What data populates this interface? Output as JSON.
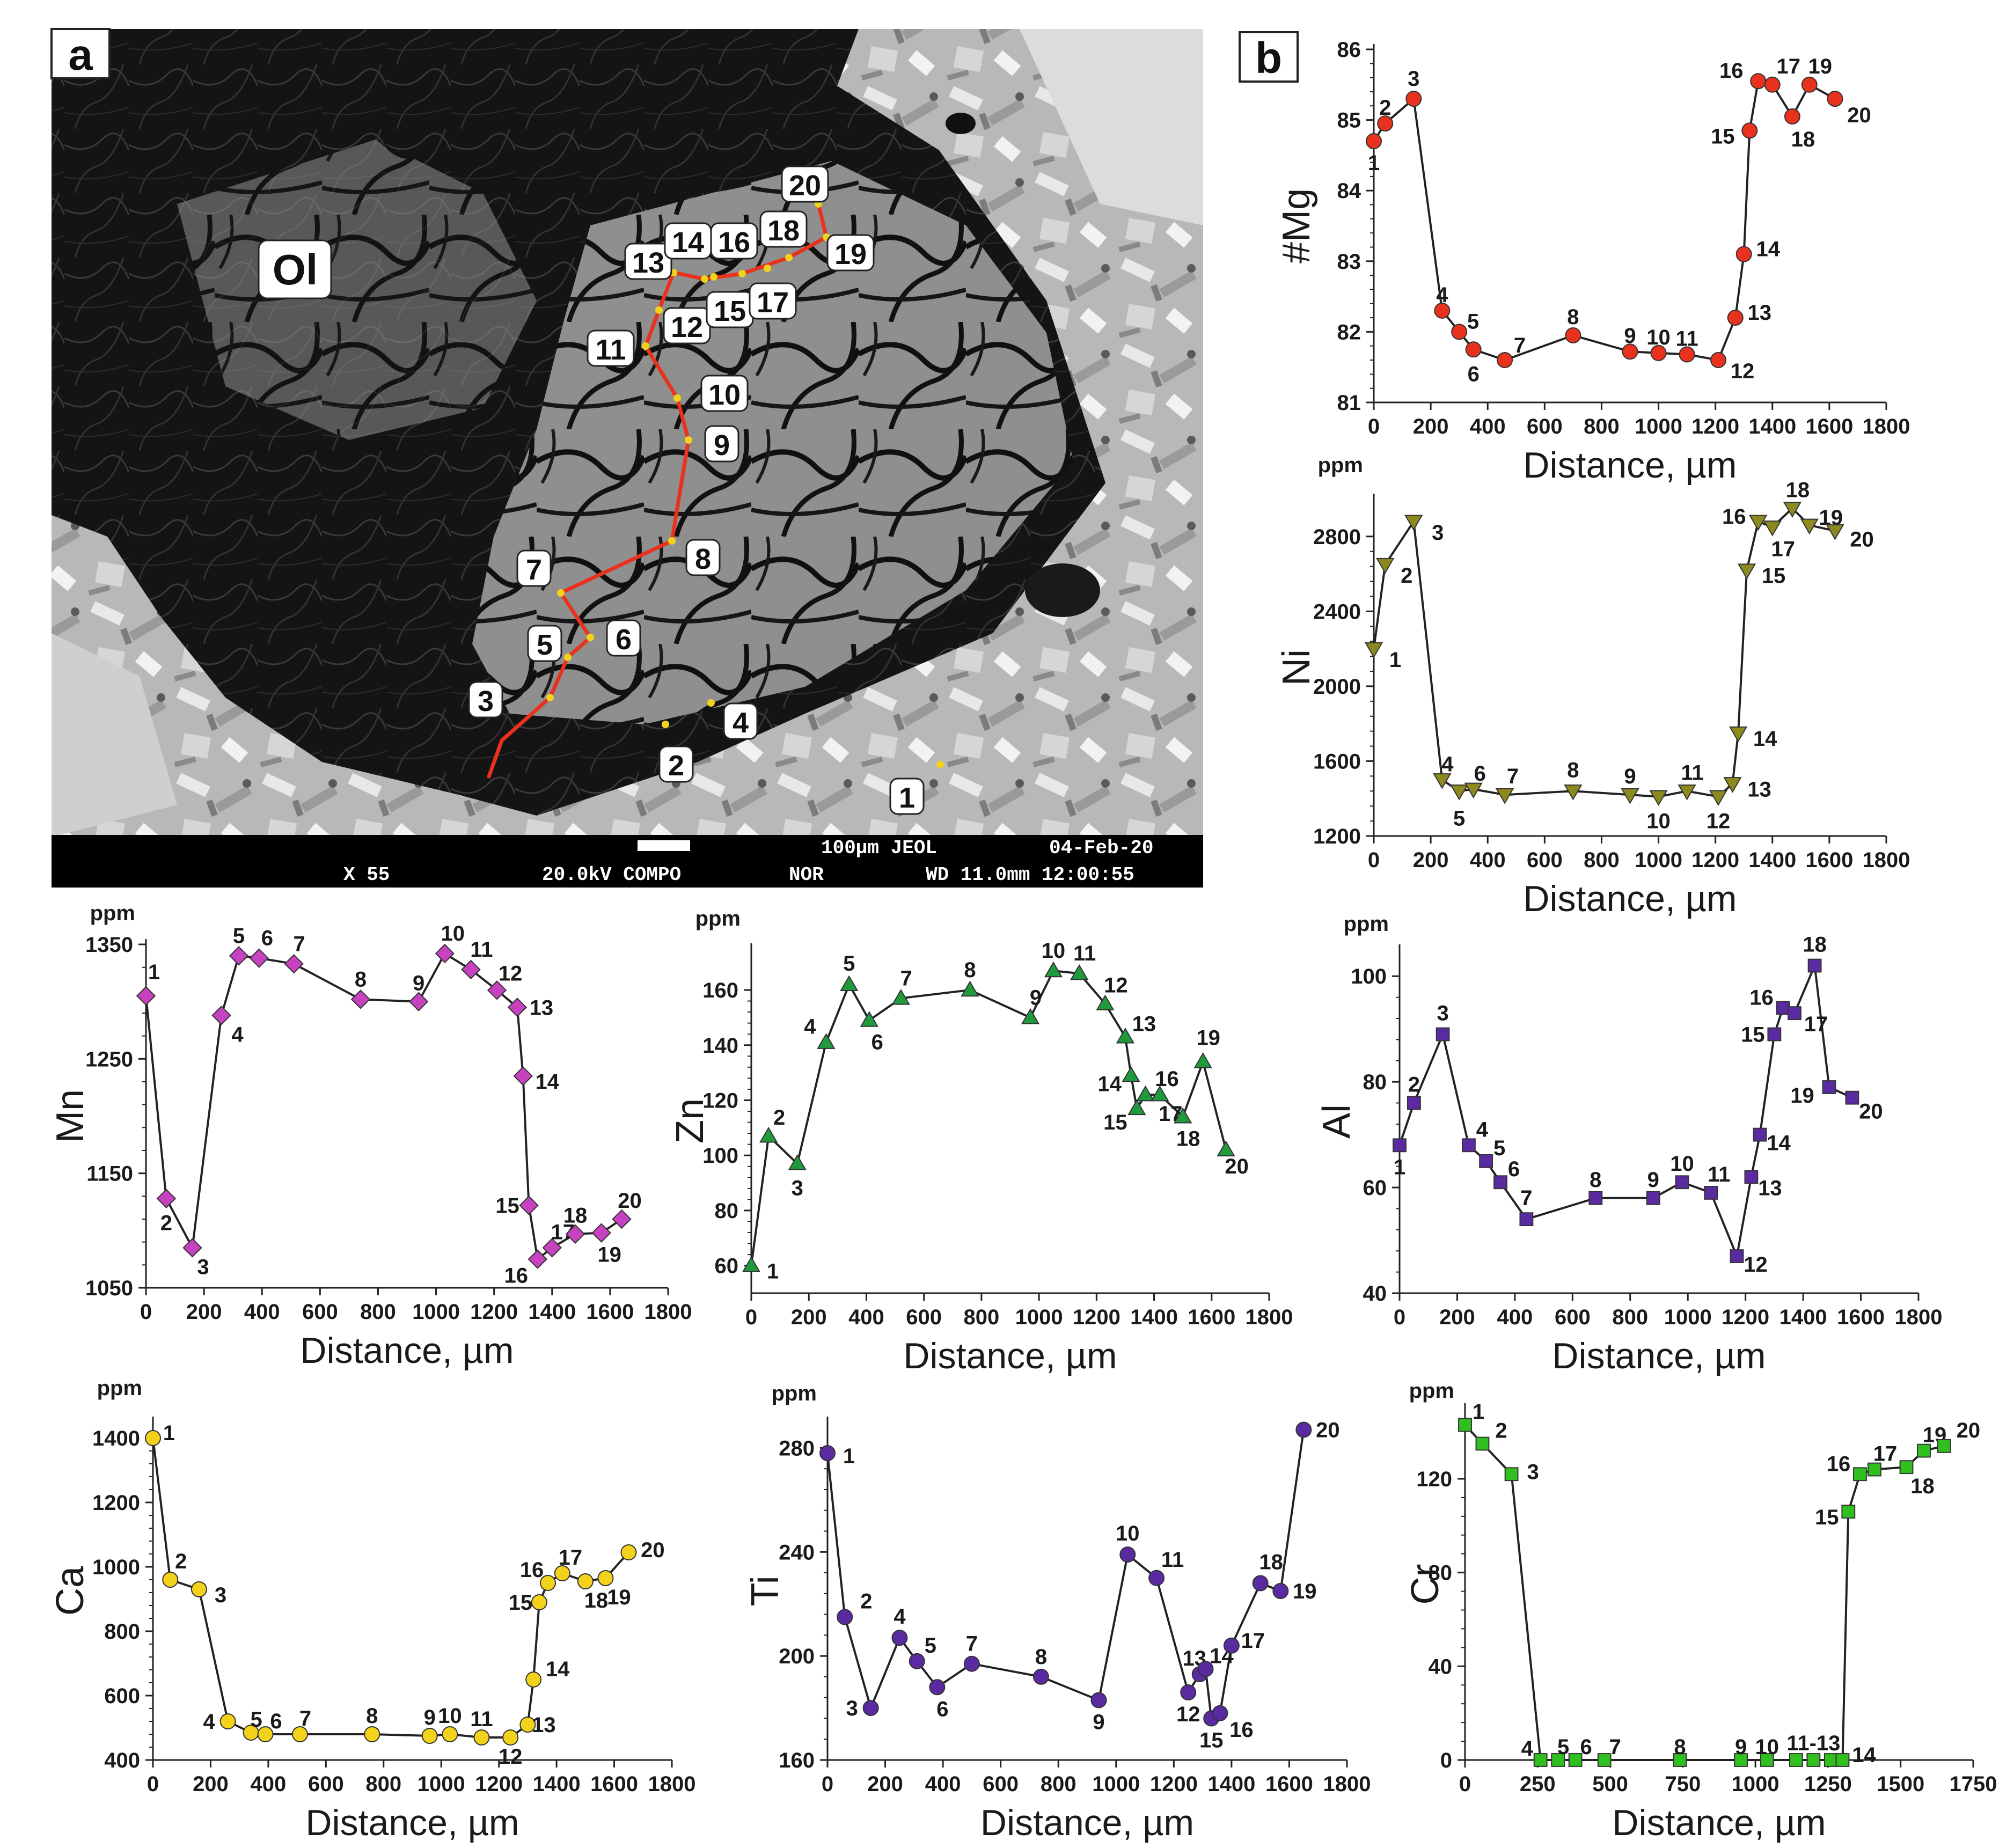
{
  "panel_a": {
    "label": "a",
    "mineral_label": "Ol",
    "scale_bar_text": "100µm JEOL",
    "date_text": "04-Feb-20",
    "magnification": "X 55",
    "voltage_mode": "20.0kV COMPO",
    "nor": "NOR",
    "wd_time": "WD 11.0mm 12:00:55",
    "traverse_points": [
      "1",
      "2",
      "3",
      "4",
      "5",
      "6",
      "7",
      "8",
      "9",
      "10",
      "11",
      "12",
      "13",
      "14",
      "15",
      "16",
      "17",
      "18",
      "19",
      "20"
    ],
    "colors": {
      "traverse": "#e8321e",
      "point": "#f2d21b"
    }
  },
  "panel_b": {
    "label": "b"
  },
  "chart_data": [
    {
      "type": "line",
      "id": "mg",
      "ylabel": "#Mg",
      "unit": "",
      "xlabel": "Distance, µm",
      "xlim": [
        0,
        1800
      ],
      "ylim": [
        81,
        86
      ],
      "xticks": [
        0,
        200,
        400,
        600,
        800,
        1000,
        1200,
        1400,
        1600,
        1800
      ],
      "yticks": [
        81,
        82,
        83,
        84,
        85,
        86
      ],
      "marker": "circle",
      "color": "#e8321e",
      "x": [
        0,
        40,
        140,
        240,
        300,
        350,
        460,
        700,
        900,
        1000,
        1100,
        1210,
        1270,
        1300,
        1320,
        1350,
        1400,
        1470,
        1530,
        1620
      ],
      "y": [
        84.7,
        84.95,
        85.3,
        82.3,
        82.0,
        81.75,
        81.6,
        81.95,
        81.72,
        81.7,
        81.68,
        81.6,
        82.2,
        83.1,
        84.85,
        85.55,
        85.5,
        85.05,
        85.5,
        85.3
      ],
      "labels": [
        "1",
        "2",
        "3",
        "4",
        "5",
        "6",
        "7",
        "8",
        "9",
        "10",
        "11",
        "12",
        "13",
        "14",
        "15",
        "16",
        "17",
        "18",
        "19",
        "20"
      ]
    },
    {
      "type": "line",
      "id": "ni",
      "ylabel": "Ni",
      "unit": "ppm",
      "xlabel": "Distance, µm",
      "xlim": [
        0,
        1800
      ],
      "ylim": [
        1200,
        3000
      ],
      "xticks": [
        0,
        200,
        400,
        600,
        800,
        1000,
        1200,
        1400,
        1600,
        1800
      ],
      "yticks": [
        1200,
        1600,
        2000,
        2400,
        2800
      ],
      "marker": "triangle-down",
      "color": "#8c8a1e",
      "x": [
        0,
        40,
        140,
        240,
        300,
        350,
        460,
        700,
        900,
        1000,
        1100,
        1210,
        1260,
        1280,
        1310,
        1350,
        1400,
        1470,
        1530,
        1620
      ],
      "y": [
        2200,
        2650,
        2880,
        1500,
        1440,
        1450,
        1420,
        1440,
        1420,
        1410,
        1440,
        1410,
        1480,
        1750,
        2620,
        2880,
        2850,
        2950,
        2860,
        2830
      ],
      "labels": [
        "1",
        "2",
        "3",
        "4",
        "5",
        "6",
        "7",
        "8",
        "9",
        "10",
        "11",
        "12",
        "13",
        "14",
        "15",
        "16",
        "17",
        "18",
        "19",
        "20"
      ]
    },
    {
      "type": "line",
      "id": "mn",
      "ylabel": "Mn",
      "unit": "ppm",
      "xlabel": "Distance, µm",
      "xlim": [
        0,
        1800
      ],
      "ylim": [
        1050,
        1350
      ],
      "xticks": [
        0,
        200,
        400,
        600,
        800,
        1000,
        1200,
        1400,
        1600,
        1800
      ],
      "yticks": [
        1050,
        1150,
        1250,
        1350
      ],
      "marker": "diamond",
      "color": "#c742c0",
      "x": [
        0,
        70,
        160,
        260,
        320,
        390,
        510,
        740,
        940,
        1030,
        1120,
        1210,
        1280,
        1300,
        1320,
        1350,
        1400,
        1480,
        1570,
        1640
      ],
      "y": [
        1305,
        1128,
        1085,
        1288,
        1340,
        1338,
        1333,
        1302,
        1300,
        1342,
        1328,
        1310,
        1295,
        1235,
        1122,
        1075,
        1085,
        1097,
        1098,
        1110
      ],
      "labels": [
        "1",
        "2",
        "3",
        "4",
        "5",
        "6",
        "7",
        "8",
        "9",
        "10",
        "11",
        "12",
        "13",
        "14",
        "15",
        "16",
        "17",
        "18",
        "19",
        "20"
      ]
    },
    {
      "type": "line",
      "id": "zn",
      "ylabel": "Zn",
      "unit": "ppm",
      "xlabel": "Distance, µm",
      "xlim": [
        0,
        1800
      ],
      "ylim": [
        50,
        175
      ],
      "xticks": [
        0,
        200,
        400,
        600,
        800,
        1000,
        1200,
        1400,
        1600,
        1800
      ],
      "yticks": [
        60,
        80,
        100,
        120,
        140,
        160
      ],
      "marker": "triangle-up",
      "color": "#1f9a3c",
      "x": [
        0,
        60,
        160,
        260,
        340,
        410,
        520,
        760,
        970,
        1050,
        1140,
        1230,
        1300,
        1320,
        1340,
        1370,
        1420,
        1500,
        1570,
        1650
      ],
      "y": [
        60,
        107,
        97,
        141,
        162,
        149,
        157,
        160,
        150,
        167,
        166,
        155,
        143,
        129,
        117,
        122,
        122,
        114,
        134,
        102
      ],
      "labels": [
        "1",
        "2",
        "3",
        "4",
        "5",
        "6",
        "7",
        "8",
        "9",
        "10",
        "11",
        "12",
        "13",
        "14",
        "15",
        "16",
        "17",
        "18",
        "19",
        "20"
      ]
    },
    {
      "type": "line",
      "id": "al",
      "ylabel": "Al",
      "unit": "ppm",
      "xlabel": "Distance, µm",
      "xlim": [
        0,
        1800
      ],
      "ylim": [
        40,
        105
      ],
      "xticks": [
        0,
        200,
        400,
        600,
        800,
        1000,
        1200,
        1400,
        1600,
        1800
      ],
      "yticks": [
        40,
        60,
        80,
        100
      ],
      "marker": "square",
      "color": "#5a2aa0",
      "x": [
        0,
        50,
        150,
        240,
        300,
        350,
        440,
        680,
        880,
        980,
        1080,
        1170,
        1220,
        1250,
        1300,
        1330,
        1370,
        1440,
        1490,
        1570
      ],
      "y": [
        68,
        76,
        89,
        68,
        65,
        61,
        54,
        58,
        58,
        61,
        59,
        47,
        62,
        70,
        89,
        94,
        93,
        102,
        79,
        77
      ],
      "labels": [
        "1",
        "2",
        "3",
        "4",
        "5",
        "6",
        "7",
        "8",
        "9",
        "10",
        "11",
        "12",
        "13",
        "14",
        "15",
        "16",
        "17",
        "18",
        "19",
        "20"
      ]
    },
    {
      "type": "line",
      "id": "ca",
      "ylabel": "Ca",
      "unit": "ppm",
      "xlabel": "Distance, µm",
      "xlim": [
        0,
        1800
      ],
      "ylim": [
        400,
        1450
      ],
      "xticks": [
        0,
        200,
        400,
        600,
        800,
        1000,
        1200,
        1400,
        1600,
        1800
      ],
      "yticks": [
        400,
        600,
        800,
        1000,
        1200,
        1400
      ],
      "marker": "circle",
      "color": "#f2d21b",
      "x": [
        0,
        60,
        160,
        260,
        340,
        390,
        510,
        760,
        960,
        1030,
        1140,
        1240,
        1300,
        1320,
        1340,
        1370,
        1420,
        1500,
        1570,
        1650
      ],
      "y": [
        1400,
        960,
        930,
        520,
        485,
        480,
        480,
        480,
        475,
        480,
        470,
        470,
        510,
        650,
        890,
        950,
        980,
        955,
        965,
        1045
      ],
      "labels": [
        "1",
        "2",
        "3",
        "4",
        "5",
        "6",
        "7",
        "8",
        "9",
        "10",
        "11",
        "12",
        "13",
        "14",
        "15",
        "16",
        "17",
        "18",
        "19",
        "20"
      ]
    },
    {
      "type": "line",
      "id": "ti",
      "ylabel": "Ti",
      "unit": "ppm",
      "xlabel": "Distance, µm",
      "xlim": [
        0,
        1800
      ],
      "ylim": [
        160,
        290
      ],
      "xticks": [
        0,
        200,
        400,
        600,
        800,
        1000,
        1200,
        1400,
        1600,
        1800
      ],
      "yticks": [
        160,
        200,
        240,
        280
      ],
      "marker": "circle",
      "color": "#5a2aa0",
      "x": [
        0,
        60,
        150,
        250,
        310,
        380,
        500,
        740,
        940,
        1040,
        1140,
        1250,
        1290,
        1310,
        1330,
        1360,
        1400,
        1500,
        1570,
        1650
      ],
      "y": [
        278,
        215,
        180,
        207,
        198,
        188,
        197,
        192,
        183,
        239,
        230,
        186,
        193,
        195,
        176,
        178,
        204,
        228,
        225,
        287
      ],
      "labels": [
        "1",
        "2",
        "3",
        "4",
        "5",
        "6",
        "7",
        "8",
        "9",
        "10",
        "11",
        "12",
        "13",
        "14",
        "15",
        "16",
        "17",
        "18",
        "19",
        "20"
      ]
    },
    {
      "type": "line",
      "id": "cr",
      "ylabel": "Cr",
      "unit": "ppm",
      "xlabel": "Distance, µm",
      "xlim": [
        0,
        1750
      ],
      "ylim": [
        0,
        150
      ],
      "xticks": [
        0,
        250,
        500,
        750,
        1000,
        1250,
        1500,
        1750
      ],
      "yticks": [
        0,
        40,
        80,
        120
      ],
      "marker": "square",
      "color": "#2fbf1f",
      "x": [
        0,
        60,
        160,
        260,
        320,
        380,
        480,
        740,
        950,
        1040,
        1140,
        1200,
        1260,
        1300,
        1320,
        1360,
        1410,
        1520,
        1580,
        1650
      ],
      "y": [
        143,
        135,
        122,
        0,
        0,
        0,
        0,
        0,
        0,
        0,
        0,
        0,
        0,
        0,
        106,
        122,
        124,
        125,
        132,
        134
      ],
      "labels": [
        "1",
        "2",
        "3",
        "4",
        "5",
        "6",
        "7",
        "8",
        "9",
        "10",
        "11",
        "12",
        "13",
        "14",
        "15",
        "16",
        "17",
        "18",
        "19",
        "20"
      ],
      "label_note": "11-13"
    }
  ]
}
